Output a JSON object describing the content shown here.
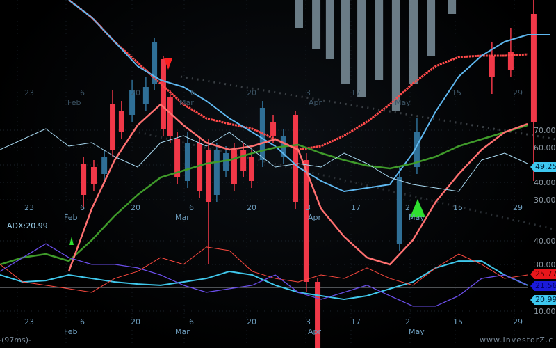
{
  "chart_data": {
    "type": "candlestick",
    "x_tick_rows": {
      "top": [
        "23",
        "Feb",
        "6",
        "20",
        "Mar",
        "6",
        "20",
        "3",
        "Apr",
        "17",
        "May",
        "15",
        "29"
      ],
      "middle": [
        "23",
        "Feb",
        "6",
        "20",
        "Mar",
        "6",
        "20",
        "3",
        "Apr",
        "17",
        "2",
        "May",
        "15",
        "29"
      ],
      "bottom": [
        "23",
        "Feb",
        "6",
        "20",
        "Mar",
        "6",
        "20",
        "3",
        "Apr",
        "17",
        "2",
        "May",
        "15",
        "29"
      ]
    },
    "price_pane": {
      "y_ticks": [
        "70.00",
        "60.00",
        "40.00",
        "30.00"
      ],
      "last_value_badge": "49.25",
      "candles": [
        {
          "t": 3.64,
          "o": 50.8,
          "c": 32.8,
          "h": 54.8,
          "l": 24.8
        },
        {
          "t": 4.09,
          "o": 48.8,
          "c": 38.8,
          "h": 52.8,
          "l": 34.8
        },
        {
          "t": 4.55,
          "o": 44.8,
          "c": 54.8,
          "h": 58.8,
          "l": 38.8
        },
        {
          "t": 4.91,
          "o": 84.8,
          "c": 58.8,
          "h": 92.8,
          "l": 54.8
        },
        {
          "t": 5.3,
          "o": 80.8,
          "c": 68.8,
          "h": 86.8,
          "l": 64.8
        },
        {
          "t": 5.76,
          "o": 78.8,
          "c": 92.8,
          "h": 98.8,
          "l": 74.8
        },
        {
          "t": 6.36,
          "o": 84.8,
          "c": 94.8,
          "h": 100.8,
          "l": 80.8
        },
        {
          "t": 6.73,
          "o": 96.8,
          "c": 120.8,
          "h": 122.8,
          "l": 92.8
        },
        {
          "t": 7.12,
          "o": 110.8,
          "c": 70.8,
          "h": 112.8,
          "l": 66.8
        },
        {
          "t": 7.42,
          "o": 88.8,
          "c": 66.8,
          "h": 92.8,
          "l": 62.8
        },
        {
          "t": 7.73,
          "o": 64.8,
          "c": 42.8,
          "h": 68.8,
          "l": 38.8
        },
        {
          "t": 8.18,
          "o": 40.8,
          "c": 62.8,
          "h": 68.8,
          "l": 36.8
        },
        {
          "t": 8.7,
          "o": 62.8,
          "c": 34.8,
          "h": 66.8,
          "l": 30.8
        },
        {
          "t": 9.09,
          "o": 58.8,
          "c": 28.8,
          "h": 64.8,
          "l": -7.2
        },
        {
          "t": 9.45,
          "o": 32.8,
          "c": 58.8,
          "h": 62.8,
          "l": 28.8
        },
        {
          "t": 9.85,
          "o": 46.8,
          "c": 56.8,
          "h": 60.8,
          "l": 42.8
        },
        {
          "t": 10.21,
          "o": 58.8,
          "c": 38.8,
          "h": 62.8,
          "l": 34.8
        },
        {
          "t": 10.61,
          "o": 58.8,
          "c": 46.8,
          "h": 62.8,
          "l": 42.8
        },
        {
          "t": 10.97,
          "o": 54.8,
          "c": 40.8,
          "h": 58.8,
          "l": 36.8
        },
        {
          "t": 11.45,
          "o": 52.8,
          "c": 82.8,
          "h": 86.8,
          "l": 48.8
        },
        {
          "t": 11.91,
          "o": 74.8,
          "c": 66.8,
          "h": 78.8,
          "l": 62.8
        },
        {
          "t": 12.36,
          "o": 54.8,
          "c": 66.8,
          "h": 70.8,
          "l": 50.8
        },
        {
          "t": 12.88,
          "o": 78.8,
          "c": 28.8,
          "h": 80.8,
          "l": 24.8
        },
        {
          "t": 13.36,
          "o": 52.8,
          "c": -17.2,
          "h": 56.8,
          "l": -23.2
        },
        {
          "t": 13.85,
          "o": -17.2,
          "c": -55.2,
          "h": -15.2,
          "l": -55.2
        },
        {
          "t": 17.42,
          "o": 4.8,
          "c": 42.8,
          "h": 48.8,
          "l": 0.8
        },
        {
          "t": 18.18,
          "o": 48.8,
          "c": 68.8,
          "h": 76.8,
          "l": 44.8
        },
        {
          "t": 21.45,
          "o": 112.8,
          "c": 100.8,
          "h": 120.8,
          "l": 90.8
        },
        {
          "t": 22.27,
          "o": 114.8,
          "c": 104.8,
          "h": 128.8,
          "l": 100.8
        },
        {
          "t": 23.27,
          "o": 136.8,
          "c": 74.8,
          "h": 144.8,
          "l": 40.8
        }
      ],
      "volume_bars": [
        {
          "t": 13.03,
          "v": 128.8
        },
        {
          "t": 13.79,
          "v": 116.8
        },
        {
          "t": 14.39,
          "v": 110.8
        },
        {
          "t": 15.06,
          "v": 96.8
        },
        {
          "t": 15.76,
          "v": 88.8
        },
        {
          "t": 16.52,
          "v": 98.8
        },
        {
          "t": 17.27,
          "v": 80.8
        },
        {
          "t": 18.03,
          "v": 96.8
        },
        {
          "t": 18.79,
          "v": 112.8
        },
        {
          "t": 19.7,
          "v": 136.8
        }
      ],
      "series": [
        {
          "color": "#ff4a4a",
          "dotted": true,
          "width": 3,
          "start": 3,
          "values": [
            144.8,
            134.8,
            120.8,
            108.8,
            96.8,
            84.8,
            76.8,
            73.6,
            70.8,
            64.8,
            58.8,
            60.8,
            66.8,
            74.8,
            84.8,
            96.8,
            106.8,
            112,
            112.8,
            112.8,
            113.6
          ]
        },
        {
          "color": "#5fb8f0",
          "dotted": false,
          "width": 2,
          "start": 3,
          "values": [
            144.8,
            134.8,
            120.8,
            106.8,
            98.8,
            94.8,
            86.8,
            76.8,
            68.8,
            60.8,
            48.8,
            40.8,
            34.8,
            36.8,
            38.8,
            56.8,
            80.8,
            100.8,
            112.8,
            120.8,
            124.8,
            124.8
          ]
        },
        {
          "color": "#3f9a2a",
          "dotted": false,
          "width": 2.5,
          "start": 0,
          "values": [
            -7.2,
            -3.2,
            -1.2,
            -5.2,
            6.8,
            20.8,
            32.8,
            42.8,
            46.8,
            50.8,
            52.8,
            56.8,
            60,
            61.6,
            56.8,
            52.8,
            49.6,
            48,
            50.8,
            54.8,
            60.8,
            64.8,
            68.8,
            72.8
          ]
        },
        {
          "color": "#ff7070",
          "dotted": false,
          "width": 2.5,
          "start": 3,
          "values": [
            -11.2,
            24.8,
            52.8,
            72.8,
            84.8,
            72.8,
            62.8,
            58.8,
            60.8,
            64.8,
            58.8,
            24.8,
            8.8,
            -3.2,
            -7.2,
            6.8,
            28.8,
            44.8,
            58.8,
            68.8,
            73.6
          ]
        },
        {
          "color": "#a8d8f0",
          "dotted": false,
          "width": 1,
          "start": 0,
          "values": [
            58.8,
            64.8,
            70.8,
            60.8,
            62.8,
            54.8,
            48.8,
            62.8,
            66.8,
            60.8,
            68.8,
            58.8,
            48.8,
            50.8,
            48.8,
            56.8,
            50.8,
            42.8,
            38.8,
            36.8,
            34.8,
            52.8,
            56.8,
            50.8
          ]
        }
      ]
    },
    "adx_pane": {
      "label": "ADX:20.99",
      "y_ticks": [
        "40.00",
        "30.00",
        "10.00"
      ],
      "badges": [
        {
          "text": "25.77",
          "color": "#e8161b"
        },
        {
          "text": "21.56",
          "color": "#1a1ad8"
        },
        {
          "text": "20.99",
          "color": "#3ec8f0"
        }
      ],
      "series": [
        {
          "color": "#40c8ec",
          "width": 2,
          "values": [
            25.5,
            22.5,
            23.1,
            25.5,
            24.0,
            22.5,
            21.6,
            21.1,
            22.5,
            24.0,
            27.0,
            25.5,
            21.1,
            18.1,
            16.6,
            15.1,
            16.6,
            19.6,
            22.5,
            28.5,
            31.4,
            31.4,
            25.5,
            21.1
          ]
        },
        {
          "color": "#ff4a40",
          "width": 1,
          "values": [
            30.0,
            22.5,
            21.1,
            19.6,
            18.1,
            24.0,
            27.0,
            32.9,
            30.0,
            37.4,
            35.9,
            27.0,
            24.0,
            22.5,
            25.5,
            24.0,
            28.5,
            24.0,
            21.1,
            28.5,
            34.4,
            30.0,
            24.0,
            25.5
          ]
        },
        {
          "color": "#6a4ee8",
          "width": 1.3,
          "values": [
            27.0,
            32.9,
            38.8,
            32.9,
            30.0,
            30.0,
            28.5,
            25.5,
            21.1,
            18.1,
            19.6,
            21.1,
            25.5,
            18.1,
            15.1,
            18.1,
            21.1,
            16.6,
            12.2,
            12.2,
            16.6,
            24.0,
            25.5,
            21.1
          ]
        }
      ]
    }
  },
  "footer": {
    "timing": "-(97ms)-",
    "watermark": "www.InvestorZ.c"
  },
  "colors": {
    "bull": "#2f6f96",
    "bear": "#f03848",
    "marker_up": "#2fe02f",
    "marker_down": "#ff2020"
  }
}
